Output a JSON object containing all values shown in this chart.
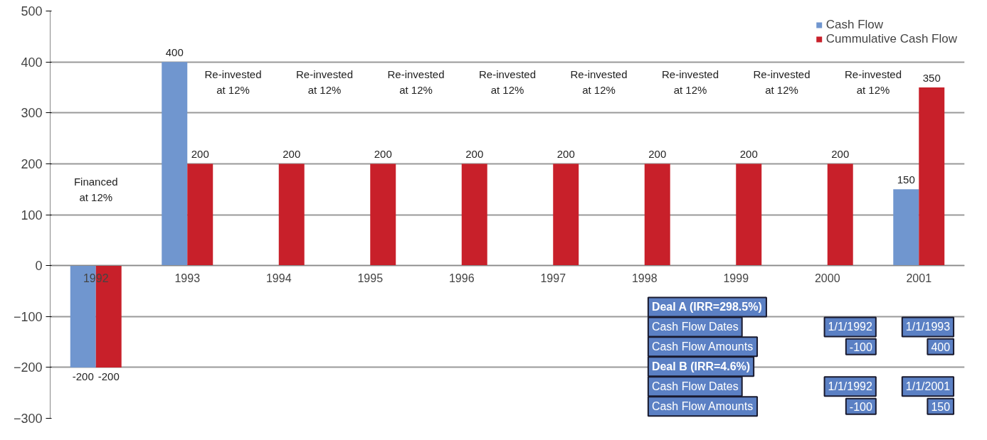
{
  "chart_data": {
    "type": "bar",
    "categories": [
      "1992",
      "1993",
      "1994",
      "1995",
      "1996",
      "1997",
      "1998",
      "1999",
      "2000",
      "2001"
    ],
    "series": [
      {
        "name": "Cash Flow",
        "color": "#7096cf",
        "values": [
          -200,
          400,
          null,
          null,
          null,
          null,
          null,
          null,
          null,
          150
        ],
        "value_labels": [
          "-200",
          "400",
          null,
          null,
          null,
          null,
          null,
          null,
          null,
          "150"
        ]
      },
      {
        "name": "Cummulative Cash Flow",
        "color": "#c8202a",
        "values": [
          -200,
          200,
          200,
          200,
          200,
          200,
          200,
          200,
          200,
          350
        ],
        "value_labels": [
          "-200",
          "200",
          "200",
          "200",
          "200",
          "200",
          "200",
          "200",
          "200",
          "350"
        ]
      }
    ],
    "ylim": [
      -300,
      500
    ],
    "yticks": [
      -300,
      -200,
      -100,
      0,
      100,
      200,
      300,
      400,
      500
    ],
    "grid": "y",
    "legend": "top right",
    "annotations": [
      "Financed\nat 12%",
      "Re-invested\nat 12%",
      "Re-invested\nat 12%",
      "Re-invested\nat 12%",
      "Re-invested\nat 12%",
      "Re-invested\nat 12%",
      "Re-invested\nat 12%",
      "Re-invested\nat 12%",
      "Re-invested\nat 12%",
      "Deal A (IRR=298.5%)",
      "Cash Flow Dates",
      "1/1/1992",
      "1/1/1993",
      "Cash Flow Amounts",
      "-100",
      "400",
      "Deal B (IRR=4.6%)",
      "Cash Flow Dates",
      "1/1/1992",
      "1/1/2001",
      "Cash Flow Amounts",
      "-100",
      "150"
    ]
  }
}
